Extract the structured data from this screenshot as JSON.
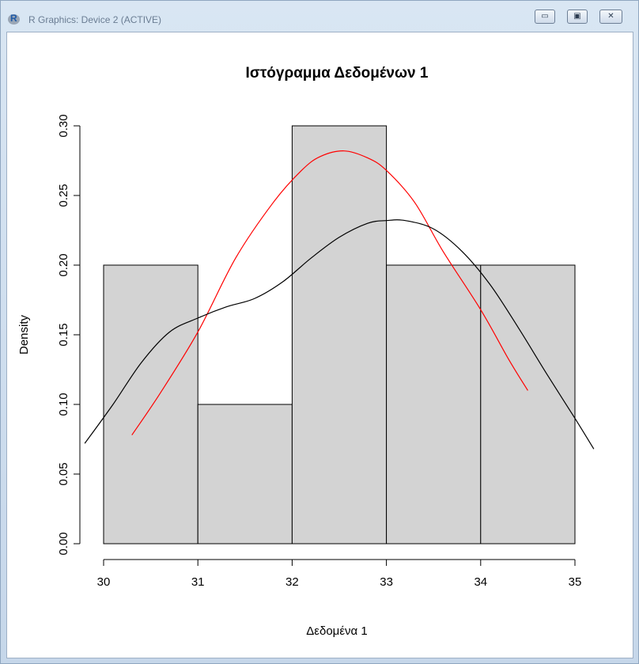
{
  "window": {
    "title": "R Graphics: Device 2 (ACTIVE)",
    "app_icon_glyph": "R",
    "buttons": {
      "minimize": "▭",
      "maximize": "▣",
      "close": "✕"
    }
  },
  "chart_data": {
    "type": "bar",
    "title": "Ιστόγραμμα Δεδομένων 1",
    "xlabel": "Δεδομένα 1",
    "ylabel": "Density",
    "xlim": [
      30,
      35
    ],
    "ylim": [
      0,
      0.3
    ],
    "x_ticks": [
      "30",
      "31",
      "32",
      "33",
      "34",
      "35"
    ],
    "y_ticks": [
      "0.00",
      "0.05",
      "0.10",
      "0.15",
      "0.20",
      "0.25",
      "0.30"
    ],
    "bins": [
      {
        "start": 30,
        "end": 31,
        "density": 0.2
      },
      {
        "start": 31,
        "end": 32,
        "density": 0.1
      },
      {
        "start": 32,
        "end": 33,
        "density": 0.3
      },
      {
        "start": 33,
        "end": 34,
        "density": 0.2
      },
      {
        "start": 34,
        "end": 35,
        "density": 0.2
      }
    ],
    "bar_fill": "#d3d3d3",
    "series": [
      {
        "color": "#ff0000",
        "points": [
          [
            30.3,
            0.078
          ],
          [
            30.6,
            0.108
          ],
          [
            31.0,
            0.152
          ],
          [
            31.4,
            0.205
          ],
          [
            31.8,
            0.245
          ],
          [
            32.1,
            0.268
          ],
          [
            32.3,
            0.278
          ],
          [
            32.55,
            0.282
          ],
          [
            32.8,
            0.277
          ],
          [
            33.0,
            0.268
          ],
          [
            33.3,
            0.245
          ],
          [
            33.6,
            0.21
          ],
          [
            34.0,
            0.168
          ],
          [
            34.3,
            0.132
          ],
          [
            34.5,
            0.11
          ]
        ]
      },
      {
        "color": "#000000",
        "points": [
          [
            29.8,
            0.072
          ],
          [
            30.1,
            0.1
          ],
          [
            30.4,
            0.13
          ],
          [
            30.7,
            0.152
          ],
          [
            31.0,
            0.162
          ],
          [
            31.3,
            0.17
          ],
          [
            31.6,
            0.176
          ],
          [
            31.9,
            0.188
          ],
          [
            32.2,
            0.205
          ],
          [
            32.5,
            0.22
          ],
          [
            32.8,
            0.23
          ],
          [
            33.0,
            0.232
          ],
          [
            33.2,
            0.232
          ],
          [
            33.5,
            0.226
          ],
          [
            33.8,
            0.21
          ],
          [
            34.1,
            0.186
          ],
          [
            34.4,
            0.155
          ],
          [
            34.7,
            0.122
          ],
          [
            35.0,
            0.09
          ],
          [
            35.2,
            0.068
          ]
        ]
      }
    ]
  }
}
